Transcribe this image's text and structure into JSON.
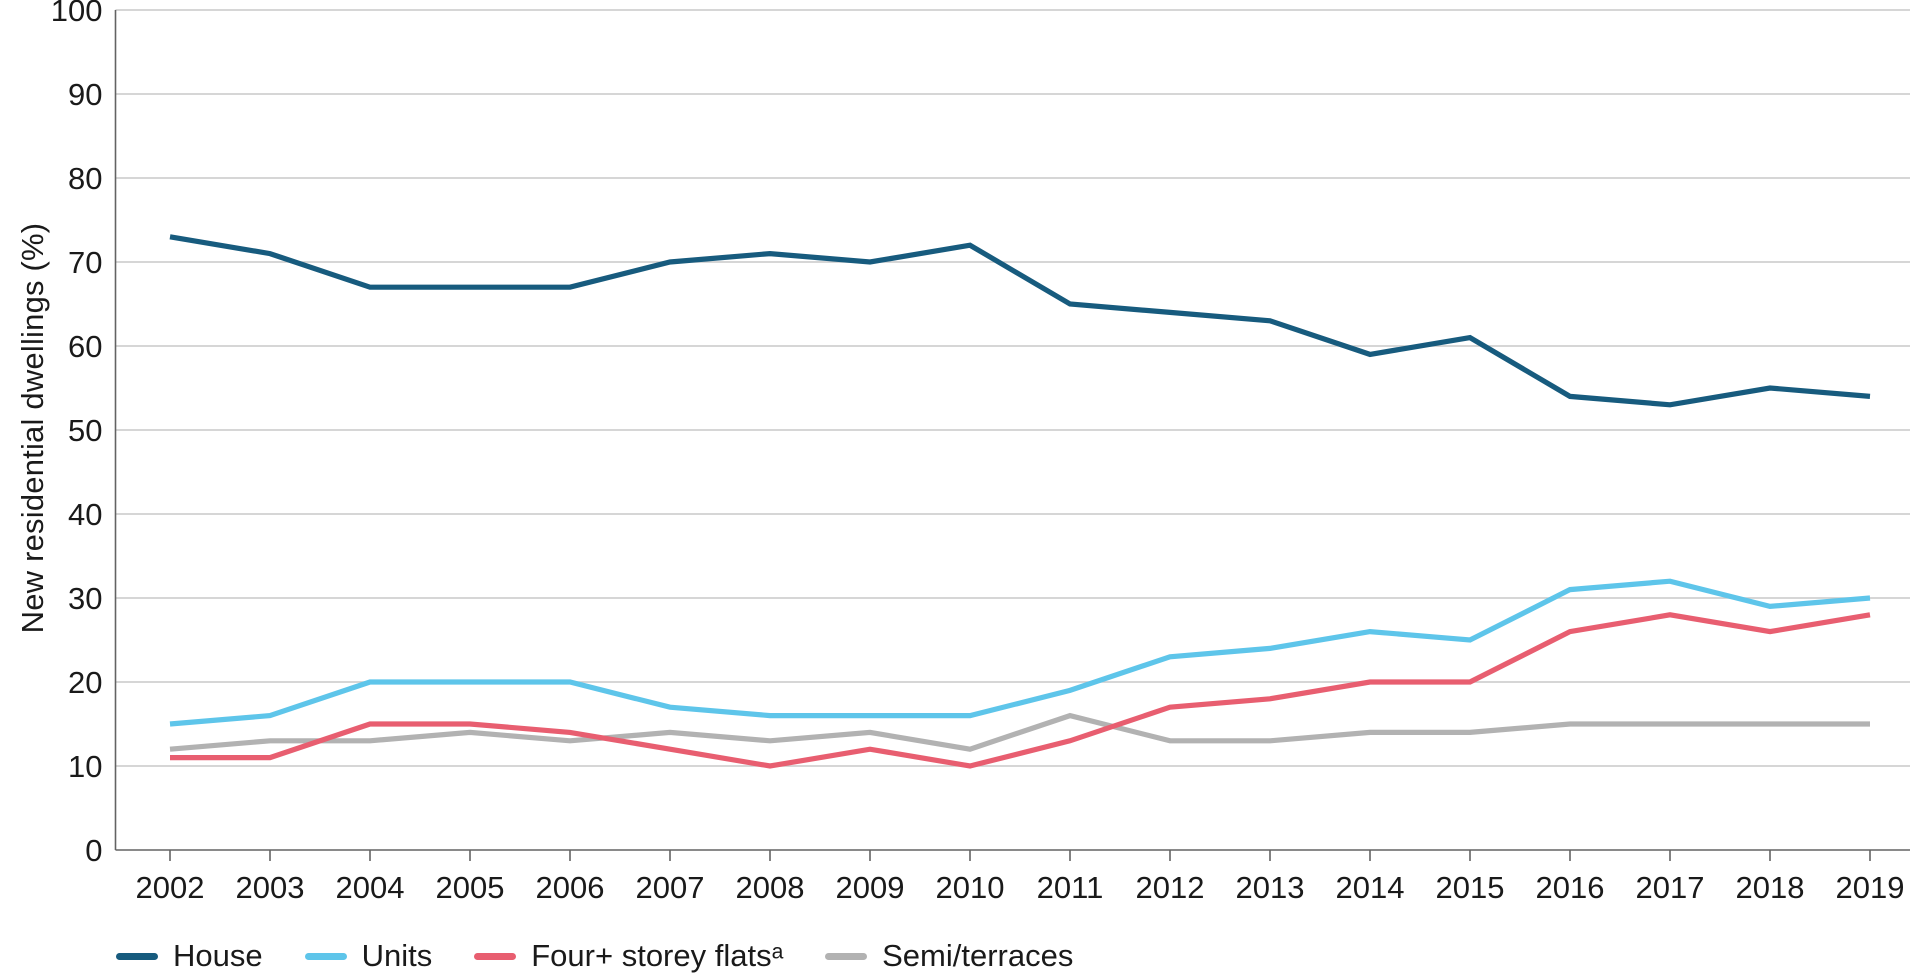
{
  "chart_data": {
    "type": "line",
    "title": "",
    "ylabel": "New residential dwellings (%)",
    "xlabel": "",
    "x": [
      2002,
      2003,
      2004,
      2005,
      2006,
      2007,
      2008,
      2009,
      2010,
      2011,
      2012,
      2013,
      2014,
      2015,
      2016,
      2017,
      2018,
      2019
    ],
    "series": [
      {
        "name": "House",
        "color": "#175B7E",
        "z": 1,
        "values": [
          73,
          71,
          67,
          67,
          67,
          70,
          71,
          70,
          72,
          65,
          64,
          63,
          59,
          61,
          54,
          53,
          55,
          54
        ]
      },
      {
        "name": "Units",
        "color": "#5EC5EA",
        "z": 2,
        "values": [
          15,
          16,
          20,
          20,
          20,
          17,
          16,
          16,
          16,
          19,
          23,
          24,
          26,
          25,
          31,
          32,
          29,
          30
        ]
      },
      {
        "name": "Four+ storey flatsᵃ",
        "color": "#E85E70",
        "z": 4,
        "values": [
          11,
          11,
          15,
          15,
          14,
          12,
          10,
          12,
          10,
          13,
          17,
          18,
          20,
          20,
          26,
          28,
          26,
          28
        ]
      },
      {
        "name": "Semi/terraces",
        "color": "#B2B2B2",
        "z": 3,
        "values": [
          12,
          13,
          13,
          14,
          13,
          14,
          13,
          14,
          12,
          16,
          13,
          13,
          14,
          14,
          15,
          15,
          15,
          15
        ]
      }
    ],
    "ylim": [
      0,
      100
    ],
    "ytick_step": 10,
    "grid": "horizontal",
    "gridline_color": "#C9C9C9",
    "axis_color": "#636363",
    "tick_label_color": "#1a1a1a",
    "legend_position": "bottom-left"
  }
}
